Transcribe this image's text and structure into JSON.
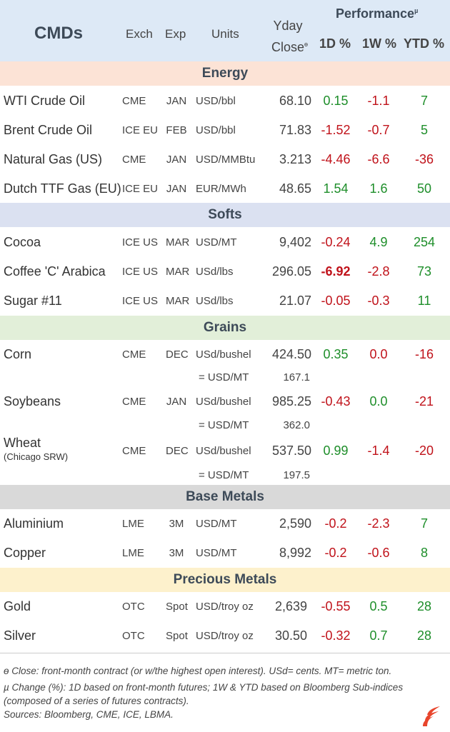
{
  "header": {
    "cmds": "CMDs",
    "exch": "Exch",
    "exp": "Exp",
    "units": "Units",
    "yday_line1": "Yday",
    "yday_line2": "Close",
    "yday_mark": "ɵ",
    "performance": "Performance",
    "perf_mark": "µ",
    "d1": "1D %",
    "w1": "1W %",
    "ytd": "YTD %"
  },
  "sections": {
    "energy": {
      "label": "Energy",
      "color": "#fce3d6"
    },
    "softs": {
      "label": "Softs",
      "color": "#dbe1f1"
    },
    "grains": {
      "label": "Grains",
      "color": "#e2efd9"
    },
    "base": {
      "label": "Base Metals",
      "color": "#d9d9d9"
    },
    "precious": {
      "label": "Precious Metals",
      "color": "#fdf1cc"
    }
  },
  "rows": {
    "wti": {
      "name": "WTI Crude Oil",
      "exch": "CME",
      "exp": "JAN",
      "units": "USD/bbl",
      "close": "68.10",
      "d1": "0.15",
      "w1": "-1.1",
      "ytd": "7"
    },
    "brent": {
      "name": "Brent Crude Oil",
      "exch": "ICE EU",
      "exp": "FEB",
      "units": "USD/bbl",
      "close": "71.83",
      "d1": "-1.52",
      "w1": "-0.7",
      "ytd": "5"
    },
    "natgas": {
      "name": "Natural Gas (US)",
      "exch": "CME",
      "exp": "JAN",
      "units": "USD/MMBtu",
      "close": "3.213",
      "d1": "-4.46",
      "w1": "-6.6",
      "ytd": "-36"
    },
    "ttf": {
      "name": "Dutch TTF Gas (EU)",
      "exch": "ICE EU",
      "exp": "JAN",
      "units": "EUR/MWh",
      "close": "48.65",
      "d1": "1.54",
      "w1": "1.6",
      "ytd": "50"
    },
    "cocoa": {
      "name": "Cocoa",
      "exch": "ICE US",
      "exp": "MAR",
      "units": "USD/MT",
      "close": "9,402",
      "d1": "-0.24",
      "w1": "4.9",
      "ytd": "254"
    },
    "coffee": {
      "name": "Coffee 'C' Arabica",
      "exch": "ICE US",
      "exp": "MAR",
      "units": "USd/lbs",
      "close": "296.05",
      "d1": "-6.92",
      "w1": "-2.8",
      "ytd": "73"
    },
    "sugar": {
      "name": "Sugar #11",
      "exch": "ICE US",
      "exp": "MAR",
      "units": "USd/lbs",
      "close": "21.07",
      "d1": "-0.05",
      "w1": "-0.3",
      "ytd": "11"
    },
    "corn": {
      "name": "Corn",
      "exch": "CME",
      "exp": "DEC",
      "units": "USd/bushel",
      "close": "424.50",
      "d1": "0.35",
      "w1": "0.0",
      "ytd": "-16",
      "sub_units": "= USD/MT",
      "sub_close": "167.1"
    },
    "soy": {
      "name": "Soybeans",
      "exch": "CME",
      "exp": "JAN",
      "units": "USd/bushel",
      "close": "985.25",
      "d1": "-0.43",
      "w1": "0.0",
      "ytd": "-21",
      "sub_units": "= USD/MT",
      "sub_close": "362.0"
    },
    "wheat": {
      "name": "Wheat",
      "name_sub": "(Chicago SRW)",
      "exch": "CME",
      "exp": "DEC",
      "units": "USd/bushel",
      "close": "537.50",
      "d1": "0.99",
      "w1": "-1.4",
      "ytd": "-20",
      "sub_units": "= USD/MT",
      "sub_close": "197.5"
    },
    "alu": {
      "name": "Aluminium",
      "exch": "LME",
      "exp": "3M",
      "units": "USD/MT",
      "close": "2,590",
      "d1": "-0.2",
      "w1": "-2.3",
      "ytd": "7"
    },
    "copper": {
      "name": "Copper",
      "exch": "LME",
      "exp": "3M",
      "units": "USD/MT",
      "close": "8,992",
      "d1": "-0.2",
      "w1": "-0.6",
      "ytd": "8"
    },
    "gold": {
      "name": "Gold",
      "exch": "OTC",
      "exp": "Spot",
      "units": "USD/troy oz",
      "close": "2,639",
      "d1": "-0.55",
      "w1": "0.5",
      "ytd": "28"
    },
    "silver": {
      "name": "Silver",
      "exch": "OTC",
      "exp": "Spot",
      "units": "USD/troy oz",
      "close": "30.50",
      "d1": "-0.32",
      "w1": "0.7",
      "ytd": "28"
    }
  },
  "footnotes": {
    "close": "ɵ Close: front-month contract (or w/the highest open interest). USd= cents. MT= metric ton.",
    "change_1": "µ Change (%): 1D based on front-month futures; 1W & YTD based on Bloomberg Sub-indices",
    "change_2": "(composed of a series of futures contracts).",
    "sources": "Sources: Bloomberg, CME, ICE, LBMA."
  },
  "colors": {
    "positive": "#1e8e2a",
    "negative": "#c0121a",
    "header_bg": "#dde9f6",
    "logo": "#e8452c"
  },
  "logo_icon": "flame-logo-icon"
}
